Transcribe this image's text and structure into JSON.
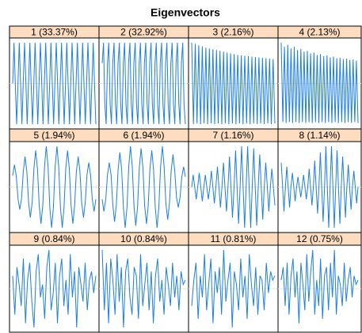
{
  "chart_data": {
    "type": "line",
    "title": "Eigenvectors",
    "color": "#1c7fe0",
    "panels": [
      {
        "label": "1 (33.37%)",
        "values": [
          0,
          1,
          0,
          -1,
          0,
          1,
          0,
          -1,
          0,
          1,
          0,
          -1,
          0,
          1,
          0,
          -1,
          0,
          1,
          0,
          -1,
          0,
          1,
          0,
          -1,
          0,
          1,
          0,
          -1,
          0,
          1,
          0,
          -1,
          0,
          1,
          0,
          -1,
          0,
          1,
          0,
          -1,
          0,
          1,
          0,
          -1,
          0,
          1,
          0,
          -1,
          0,
          1,
          0,
          -1,
          0,
          1,
          0,
          -1,
          0,
          1,
          0,
          -1,
          0,
          1,
          0,
          -1
        ]
      },
      {
        "label": "2 (32.92%)",
        "values": [
          0.5,
          1,
          -0.5,
          -1,
          0.5,
          1,
          -0.5,
          -1,
          0.5,
          1,
          -0.5,
          -1,
          0.5,
          1,
          -0.5,
          -1,
          0.5,
          1,
          -0.5,
          -1,
          0.5,
          1,
          -0.5,
          -1,
          0.5,
          1,
          -0.5,
          -1,
          0.5,
          1,
          -0.5,
          -1,
          0.5,
          1,
          -0.5,
          -1,
          0.5,
          1,
          -0.5,
          -1,
          0.5,
          1,
          -0.5,
          -1,
          0.5,
          1,
          -0.5,
          -1,
          0.5,
          1,
          -0.5,
          -1,
          0.5,
          1,
          -0.5,
          -1,
          0.5,
          1,
          -0.5,
          -1,
          0.5,
          1,
          -0.5,
          -1
        ]
      },
      {
        "label": "3 (2.16%)",
        "values": [
          1,
          -1,
          0.97,
          -0.98,
          0.94,
          -1,
          0.91,
          -0.98,
          0.88,
          -1,
          0.86,
          -0.98,
          0.84,
          -1,
          0.82,
          -0.98,
          0.8,
          -1,
          0.78,
          -0.98,
          0.76,
          -1,
          0.74,
          -0.98,
          0.72,
          -1,
          0.7,
          -0.98,
          0.69,
          -1,
          0.68,
          -0.98,
          0.67,
          -1,
          0.66,
          -0.98,
          0.65,
          -1,
          0.64,
          -0.98,
          0.63,
          -1,
          0.62,
          -0.98,
          0.61,
          -1,
          0.6,
          -0.98
        ]
      },
      {
        "label": "4 (2.13%)",
        "values": [
          1,
          -0.95,
          0.9,
          -0.97,
          0.95,
          -0.95,
          0.86,
          -0.97,
          0.9,
          -0.95,
          0.82,
          -0.97,
          0.85,
          -0.95,
          0.78,
          -0.97,
          0.8,
          -0.95,
          0.74,
          -0.97,
          0.76,
          -0.95,
          0.7,
          -0.97,
          0.72,
          -0.95,
          0.67,
          -0.97,
          0.69,
          -0.95,
          0.64,
          -0.97,
          0.66,
          -0.95,
          0.62,
          -0.97,
          0.63,
          -0.95,
          0.6,
          -0.97,
          0.61,
          -0.95,
          0.58,
          -0.97,
          0.59,
          -0.95,
          0.56,
          -0.97
        ]
      },
      {
        "label": "5 (1.94%)",
        "values": [
          0.28,
          0.55,
          0.28,
          -0.28,
          -0.55,
          -0.28,
          0.38,
          0.75,
          0.38,
          -0.38,
          -0.75,
          -0.38,
          0.45,
          0.9,
          0.45,
          -0.45,
          -0.9,
          -0.45,
          0.5,
          1,
          0.5,
          -0.5,
          -1,
          -0.5,
          0.5,
          1,
          0.5,
          -0.5,
          -1,
          -0.5,
          0.45,
          0.9,
          0.45,
          -0.45,
          -0.9,
          -0.45,
          0.38,
          0.75,
          0.38,
          -0.38,
          -0.75,
          -0.38,
          0.3,
          0.6,
          0.3,
          -0.3,
          -0.6,
          -0.3
        ]
      },
      {
        "label": "6 (1.94%)",
        "values": [
          -0.3,
          -0.6,
          -0.3,
          0.3,
          0.6,
          0.3,
          -0.43,
          -0.85,
          -0.43,
          0.43,
          0.85,
          0.43,
          -0.5,
          -1,
          -0.5,
          0.5,
          1,
          0.5,
          -0.48,
          -0.95,
          -0.48,
          0.48,
          0.95,
          0.48,
          -0.45,
          -0.9,
          -0.45,
          0.45,
          0.9,
          0.45,
          -0.5,
          -1,
          -0.5,
          0.5,
          1,
          0.5,
          -0.4,
          -0.8,
          -0.4,
          0.4,
          0.8,
          0.4,
          -0.25,
          -0.5,
          -0.25,
          0.25,
          0.5,
          0.25
        ]
      },
      {
        "label": "7 (1.16%)",
        "values": [
          0,
          0.3,
          0,
          -0.3,
          0,
          0.35,
          0,
          -0.35,
          0,
          0.3,
          0,
          -0.3,
          0,
          0.4,
          0,
          -0.4,
          0,
          0.5,
          0,
          -0.5,
          0,
          0.6,
          0,
          -0.6,
          0,
          0.75,
          0,
          -0.75,
          0,
          0.9,
          0,
          -0.9,
          0,
          1,
          0,
          -1,
          0,
          1,
          0,
          -1,
          0,
          0.95,
          0,
          -0.95,
          0,
          0.8,
          0,
          -0.8,
          0,
          0.6,
          0,
          -0.6,
          0,
          0.45,
          0,
          -0.45
        ]
      },
      {
        "label": "8 (1.14%)",
        "values": [
          0.6,
          0,
          -0.6,
          0,
          0.5,
          0,
          -0.5,
          0,
          0.35,
          0,
          -0.35,
          0,
          0.25,
          0,
          -0.25,
          0,
          0.3,
          0,
          -0.3,
          0,
          0.45,
          0,
          -0.45,
          0,
          0.65,
          0,
          -0.65,
          0,
          0.85,
          0,
          -0.85,
          0,
          1,
          0,
          -1,
          0,
          1,
          0,
          -1,
          0,
          0.9,
          0,
          -0.9,
          0,
          0.75,
          0,
          -0.75,
          0,
          0.55,
          0,
          -0.55,
          0,
          0.4,
          0,
          -0.4,
          0
        ]
      },
      {
        "label": "9 (0.84%)",
        "values": [
          0.3,
          -0.6,
          0.5,
          0.1,
          -0.4,
          0.7,
          -0.8,
          0.2,
          0.6,
          -0.3,
          -0.9,
          0.4,
          0.8,
          -0.2,
          0.1,
          -0.7,
          0.5,
          0.9,
          -0.5,
          -0.1,
          0.6,
          -0.8,
          0.3,
          0.7,
          -0.4,
          0.2,
          -0.6,
          0.8,
          -0.2,
          0.4,
          -0.9,
          0.5,
          0.1,
          -0.3,
          0.6,
          -0.5,
          0.2,
          0.4,
          -0.1,
          0.3
        ]
      },
      {
        "label": "10 (0.84%)",
        "values": [
          0.9,
          -0.5,
          0.6,
          -0.8,
          0.7,
          0.2,
          -0.6,
          0.8,
          -0.3,
          0.5,
          -0.9,
          0.4,
          0.7,
          -0.2,
          -0.6,
          0.5,
          0.3,
          -0.7,
          0.8,
          -0.4,
          0.1,
          0.6,
          -0.5,
          0.4,
          -0.8,
          0.3,
          0.7,
          -0.3,
          0.2,
          -0.6,
          0.5,
          0.1,
          -0.4,
          0.6,
          -0.2,
          0.3,
          -0.5,
          0.4,
          0.1,
          0.2
        ]
      },
      {
        "label": "11 (0.81%)",
        "values": [
          -0.4,
          0.2,
          0.6,
          -0.7,
          0.3,
          -0.2,
          0.8,
          -0.5,
          0.1,
          0.7,
          -0.8,
          0.4,
          -0.1,
          0.5,
          -0.6,
          0.9,
          -0.3,
          0.2,
          0.6,
          -0.9,
          0.4,
          0.1,
          -0.5,
          0.7,
          -0.2,
          0.3,
          -0.7,
          0.8,
          0.1,
          -0.4,
          0.5,
          -0.6,
          0.3,
          0.2,
          -0.5,
          0.6,
          -0.1,
          0.4,
          0.2,
          0.3
        ]
      },
      {
        "label": "12 (0.75%)",
        "values": [
          0.2,
          0.5,
          -0.4,
          0.6,
          -0.6,
          0.3,
          0.7,
          -0.2,
          0.4,
          -0.8,
          0.6,
          0.1,
          -0.5,
          0.8,
          -0.3,
          0.4,
          0.9,
          -0.6,
          0.2,
          -0.4,
          0.7,
          -0.7,
          0.3,
          0.5,
          -0.5,
          0.6,
          -0.2,
          0.9,
          -0.6,
          0.3,
          0.1,
          -0.4,
          0.6,
          -0.3,
          0.2,
          0.5,
          -0.2,
          0.3,
          0.1,
          0.2
        ]
      }
    ]
  }
}
